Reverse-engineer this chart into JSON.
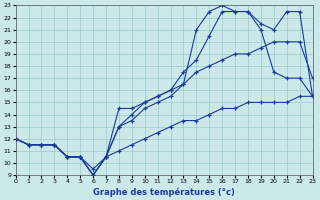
{
  "xlabel": "Graphe des températures (°c)",
  "bg_color": "#cce9e9",
  "line_color": "#1a3a9c",
  "grid_color": "#99cccc",
  "xlim": [
    0,
    23
  ],
  "ylim": [
    9,
    23
  ],
  "xticks": [
    0,
    1,
    2,
    3,
    4,
    5,
    6,
    7,
    8,
    9,
    10,
    11,
    12,
    13,
    14,
    15,
    16,
    17,
    18,
    19,
    20,
    21,
    22,
    23
  ],
  "yticks": [
    9,
    10,
    11,
    12,
    13,
    14,
    15,
    16,
    17,
    18,
    19,
    20,
    21,
    22,
    23
  ],
  "curve_a_x": [
    0,
    1,
    2,
    3,
    4,
    5,
    6,
    7,
    8,
    9,
    10,
    11,
    12,
    13,
    14,
    15,
    16,
    17,
    18,
    19,
    20,
    21,
    22,
    23
  ],
  "curve_a_y": [
    12,
    11.5,
    11.5,
    11.5,
    10.5,
    10.5,
    9.5,
    10.5,
    11.0,
    11.5,
    12.0,
    12.5,
    13.0,
    13.5,
    13.5,
    14.0,
    14.5,
    14.5,
    15.0,
    15.0,
    15.0,
    15.0,
    15.5,
    15.5
  ],
  "curve_b_x": [
    0,
    1,
    2,
    3,
    4,
    5,
    6,
    7,
    8,
    9,
    10,
    11,
    12,
    13,
    14,
    15,
    16,
    17,
    18,
    19,
    20,
    21,
    22,
    23
  ],
  "curve_b_y": [
    12,
    11.5,
    11.5,
    11.5,
    10.5,
    10.5,
    9.0,
    10.5,
    14.5,
    14.5,
    15.0,
    15.5,
    16.0,
    16.5,
    17.5,
    18.0,
    18.5,
    19.0,
    19.0,
    19.5,
    20.0,
    20.0,
    20.0,
    17.0
  ],
  "curve_c_x": [
    0,
    1,
    2,
    3,
    4,
    5,
    6,
    7,
    8,
    9,
    10,
    11,
    12,
    13,
    14,
    15,
    16,
    17,
    18,
    19,
    20,
    21,
    22,
    23
  ],
  "curve_c_y": [
    12,
    11.5,
    11.5,
    11.5,
    10.5,
    10.5,
    9.0,
    10.5,
    13.0,
    14.0,
    15.0,
    15.5,
    16.0,
    17.5,
    18.5,
    20.5,
    22.5,
    22.5,
    22.5,
    21.5,
    21.0,
    22.5,
    22.5,
    15.5
  ],
  "curve_d_x": [
    0,
    1,
    2,
    3,
    4,
    5,
    6,
    7,
    8,
    9,
    10,
    11,
    12,
    13,
    14,
    15,
    16,
    17,
    18,
    19,
    20,
    21,
    22,
    23
  ],
  "curve_d_y": [
    12,
    11.5,
    11.5,
    11.5,
    10.5,
    10.5,
    9.0,
    10.5,
    13.0,
    13.5,
    14.5,
    15.0,
    15.5,
    16.5,
    21.0,
    22.5,
    23.0,
    22.5,
    22.5,
    21.0,
    17.5,
    17.0,
    17.0,
    15.5
  ]
}
